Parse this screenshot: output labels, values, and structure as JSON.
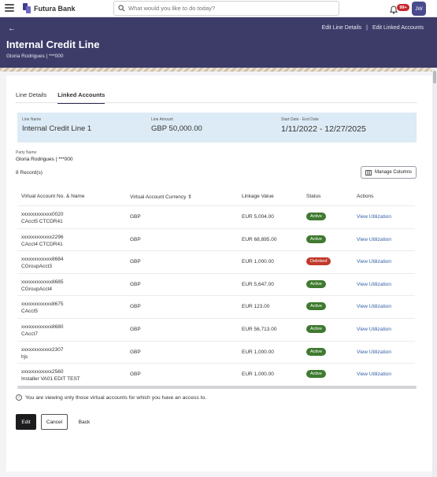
{
  "header": {
    "bank_name": "Futura Bank",
    "search_placeholder": "What would you like to do today?",
    "notification_count": "99+",
    "user_initials": "JW"
  },
  "hero": {
    "title": "Internal Credit Line",
    "subtitle": "Gloria Rodrigues | ***000",
    "links": [
      "Edit Line Details",
      "|",
      "Edit Linked Accounts"
    ]
  },
  "tabs": [
    {
      "label": "Line Details",
      "active": false
    },
    {
      "label": "Linked Accounts",
      "active": true
    }
  ],
  "line_info": {
    "line_name_label": "Line Name",
    "line_name": "Internal Credit Line 1",
    "line_amount_label": "Line Amount",
    "line_amount": "GBP 50,000.00",
    "dates_label": "Start Date - End Date",
    "dates": "1/11/2022 - 12/27/2025"
  },
  "party": {
    "label": "Party Name",
    "value": "Gloria Rodrigues | ***000"
  },
  "records_text": "8 Record(s)",
  "manage_columns_label": "Manage Columns",
  "table": {
    "headers": [
      "Virtual Account No. & Name",
      "Virtual Account Currency",
      "Linkage Value",
      "Status",
      "Actions"
    ],
    "rows": [
      {
        "acct": "xxxxxxxxxxxx0020",
        "name": "CAcct5 CTCDR41",
        "currency": "GBP",
        "value": "EUR 5,004.00",
        "status": "Active",
        "action": "View Utilization"
      },
      {
        "acct": "xxxxxxxxxxxx2296",
        "name": "CAcct4 CTCDR41",
        "currency": "GBP",
        "value": "EUR 68,895.00",
        "status": "Active",
        "action": "View Utilization"
      },
      {
        "acct": "xxxxxxxxxxxx8684",
        "name": "CGroupAcct3",
        "currency": "GBP",
        "value": "EUR 1,000.00",
        "status": "Delinked",
        "action": "View Utilization"
      },
      {
        "acct": "xxxxxxxxxxxx8685",
        "name": "CGroupAcct4",
        "currency": "GBP",
        "value": "EUR 5,647.00",
        "status": "Active",
        "action": "View Utilization"
      },
      {
        "acct": "xxxxxxxxxxxx8675",
        "name": "CAcct5",
        "currency": "GBP",
        "value": "EUR 123.00",
        "status": "Active",
        "action": "View Utilization"
      },
      {
        "acct": "xxxxxxxxxxxx8680",
        "name": "CAcct7",
        "currency": "GBP",
        "value": "EUR 56,713.00",
        "status": "Active",
        "action": "View Utilization"
      },
      {
        "acct": "xxxxxxxxxxxx2307",
        "name": "hjs",
        "currency": "GBP",
        "value": "EUR 1,000.00",
        "status": "Active",
        "action": "View Utilization"
      },
      {
        "acct": "xxxxxxxxxxxx2560",
        "name": "Installer VA01 EDIT TEST",
        "currency": "GBP",
        "value": "EUR 1,000.00",
        "status": "Active",
        "action": "View Utilization"
      }
    ]
  },
  "note": "You are viewing only those virtual accounts for which you have an access to.",
  "buttons": {
    "edit": "Edit",
    "cancel": "Cancel",
    "back": "Back"
  }
}
